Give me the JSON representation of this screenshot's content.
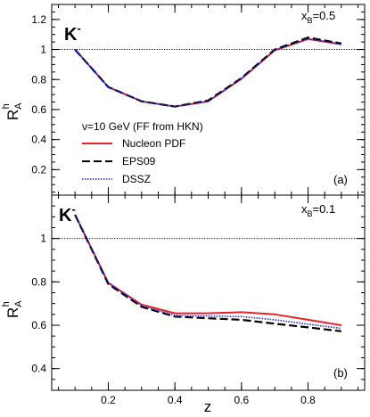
{
  "figure": {
    "xlabel": "z",
    "ylabel_main": "R",
    "ylabel_sup": "h",
    "ylabel_sub": "A"
  },
  "legend": {
    "header": "ν=10 GeV (FF from HKN)",
    "entries": [
      {
        "label": "Nucleon PDF",
        "color": "#e8222a",
        "dash": "solid"
      },
      {
        "label": "EPS09",
        "color": "#000000",
        "dash": "longdash"
      },
      {
        "label": "DSSZ",
        "color": "#1f2bd0",
        "dash": "dotted"
      }
    ]
  },
  "chart_data": [
    {
      "type": "line",
      "panel_tag": "(a)",
      "particle_label": "K",
      "particle_sup": "-",
      "condition_main": "x",
      "condition_sub": "B",
      "condition_value": "=0.5",
      "xlim": [
        0.03,
        0.97
      ],
      "ylim": [
        0.03,
        1.3
      ],
      "xticks": [
        0.2,
        0.4,
        0.6,
        0.8
      ],
      "yticks": [
        0.2,
        0.4,
        0.6,
        0.8,
        1,
        1.2
      ],
      "reference_line": 1.0,
      "x": [
        0.1,
        0.2,
        0.3,
        0.4,
        0.5,
        0.6,
        0.7,
        0.8,
        0.9
      ],
      "series": [
        {
          "name": "Nucleon PDF",
          "values": [
            1.0,
            0.75,
            0.655,
            0.62,
            0.655,
            0.805,
            0.995,
            1.07,
            1.035
          ]
        },
        {
          "name": "EPS09",
          "values": [
            1.0,
            0.75,
            0.655,
            0.62,
            0.66,
            0.81,
            1.0,
            1.08,
            1.04
          ]
        },
        {
          "name": "DSSZ",
          "values": [
            1.0,
            0.75,
            0.655,
            0.62,
            0.655,
            0.805,
            0.995,
            1.07,
            1.035
          ]
        }
      ]
    },
    {
      "type": "line",
      "panel_tag": "(b)",
      "particle_label": "K",
      "particle_sup": "-",
      "condition_main": "x",
      "condition_sub": "B",
      "condition_value": "=0.1",
      "xlim": [
        0.03,
        0.97
      ],
      "ylim": [
        0.3,
        1.2
      ],
      "xticks": [
        0.2,
        0.4,
        0.6,
        0.8
      ],
      "yticks": [
        0.4,
        0.6,
        0.8,
        1
      ],
      "reference_line": 1.0,
      "x": [
        0.1,
        0.2,
        0.3,
        0.4,
        0.5,
        0.6,
        0.7,
        0.8,
        0.9
      ],
      "series": [
        {
          "name": "Nucleon PDF",
          "values": [
            1.11,
            0.795,
            0.695,
            0.655,
            0.655,
            0.66,
            0.65,
            0.625,
            0.6
          ]
        },
        {
          "name": "EPS09",
          "values": [
            1.11,
            0.79,
            0.685,
            0.64,
            0.632,
            0.625,
            0.607,
            0.59,
            0.572
          ]
        },
        {
          "name": "DSSZ",
          "values": [
            1.11,
            0.795,
            0.69,
            0.645,
            0.642,
            0.64,
            0.625,
            0.605,
            0.585
          ]
        }
      ]
    }
  ]
}
